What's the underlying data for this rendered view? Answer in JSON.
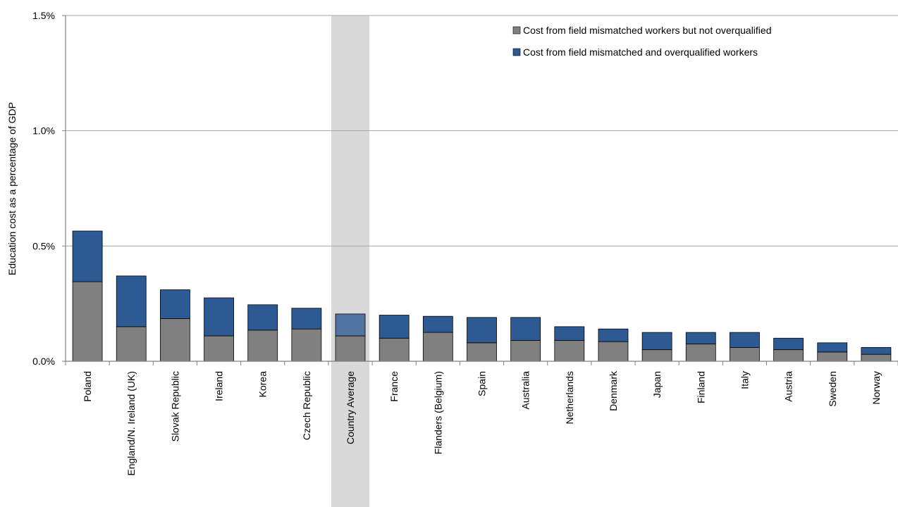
{
  "chart_data": {
    "type": "bar",
    "stacked": true,
    "title": "",
    "xlabel": "",
    "ylabel": "Education cost as a percentage of GDP",
    "ylim": [
      0,
      1.5
    ],
    "yticks": [
      "0.0%",
      "0.5%",
      "1.0%",
      "1.5%"
    ],
    "ytick_values": [
      0,
      0.5,
      1.0,
      1.5
    ],
    "grid": true,
    "legend_position": "top-right",
    "highlight_category": "Country Average",
    "categories": [
      "Poland",
      "England/N. Ireland (UK)",
      "Slovak Republic",
      "Ireland",
      "Korea",
      "Czech Republic",
      "Country Average",
      "France",
      "Flanders (Belgium)",
      "Spain",
      "Australia",
      "Netherlands",
      "Denmark",
      "Japan",
      "Finland",
      "Italy",
      "Austria",
      "Sweden",
      "Norway"
    ],
    "series": [
      {
        "name": "Cost from field mismatched workers but not overqualified",
        "color": "#808080",
        "values": [
          0.345,
          0.15,
          0.185,
          0.11,
          0.135,
          0.14,
          0.11,
          0.1,
          0.125,
          0.08,
          0.09,
          0.09,
          0.085,
          0.05,
          0.075,
          0.06,
          0.05,
          0.04,
          0.03
        ]
      },
      {
        "name": "Cost from field mismatched and overqualified workers",
        "color": "#2e5a94",
        "values": [
          0.22,
          0.22,
          0.125,
          0.165,
          0.11,
          0.09,
          0.095,
          0.1,
          0.07,
          0.11,
          0.1,
          0.06,
          0.055,
          0.075,
          0.05,
          0.065,
          0.05,
          0.04,
          0.03
        ]
      }
    ]
  }
}
